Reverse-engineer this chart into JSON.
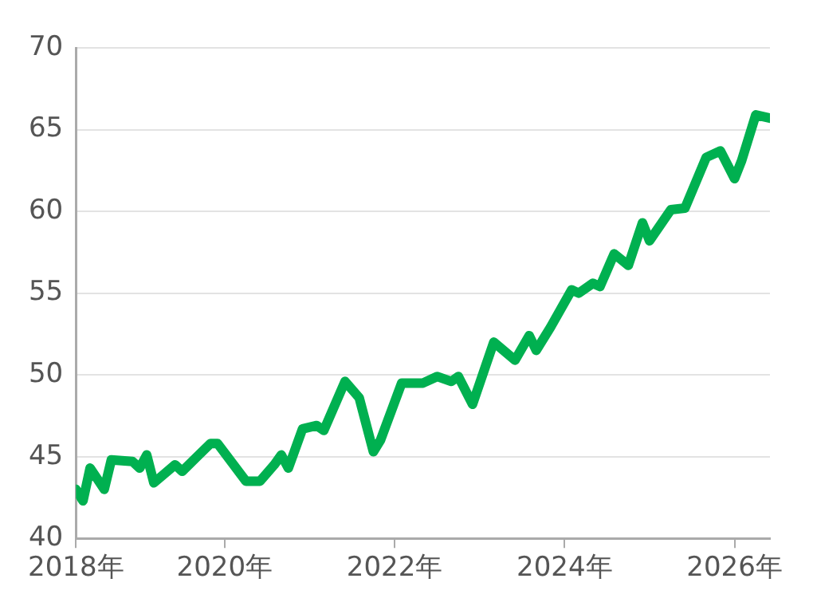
{
  "chart_data": {
    "type": "line",
    "x": [
      "2018-04",
      "2018-05",
      "2018-06",
      "2018-08",
      "2018-09",
      "2018-12",
      "2019-01",
      "2019-02",
      "2019-03",
      "2019-06",
      "2019-07",
      "2019-11",
      "2019-12",
      "2020-04",
      "2020-06",
      "2020-08",
      "2020-09",
      "2020-10",
      "2020-12",
      "2021-02",
      "2021-03",
      "2021-06",
      "2021-08",
      "2021-10",
      "2021-11",
      "2022-02",
      "2022-05",
      "2022-07",
      "2022-09",
      "2022-10",
      "2022-12",
      "2023-03",
      "2023-06",
      "2023-08",
      "2023-09",
      "2023-11",
      "2024-02",
      "2024-03",
      "2024-05",
      "2024-06",
      "2024-08",
      "2024-10",
      "2024-12",
      "2025-01",
      "2025-04",
      "2025-06",
      "2025-09",
      "2025-11",
      "2026-01",
      "2026-02",
      "2026-04",
      "2026-06"
    ],
    "series": [
      {
        "color": "#00b050",
        "values": [
          43.0,
          42.3,
          44.3,
          43.0,
          44.8,
          44.7,
          44.3,
          45.1,
          43.4,
          44.5,
          44.1,
          45.8,
          45.8,
          43.5,
          43.5,
          44.5,
          45.1,
          44.3,
          46.7,
          46.9,
          46.6,
          49.6,
          48.6,
          45.3,
          46.0,
          49.5,
          49.5,
          49.9,
          49.6,
          49.9,
          48.2,
          52.0,
          50.9,
          52.4,
          51.5,
          52.9,
          55.2,
          55.0,
          55.6,
          55.4,
          57.4,
          56.7,
          59.3,
          58.2,
          60.1,
          60.2,
          63.3,
          63.7,
          62.0,
          63.1,
          65.9,
          65.7
        ]
      }
    ],
    "xlim": [
      "2018-04",
      "2026-06"
    ],
    "xticks": [
      {
        "value": "2018-04",
        "label": "2018年"
      },
      {
        "value": "2020-01",
        "label": "2020年"
      },
      {
        "value": "2022-01",
        "label": "2022年"
      },
      {
        "value": "2024-01",
        "label": "2024年"
      },
      {
        "value": "2026-01",
        "label": "2026年"
      }
    ],
    "ylim": [
      40,
      70
    ],
    "yticks": [
      40,
      45,
      50,
      55,
      60,
      65,
      70
    ],
    "grid": "y",
    "legend": false,
    "marker": "none",
    "line_style": "solid"
  }
}
